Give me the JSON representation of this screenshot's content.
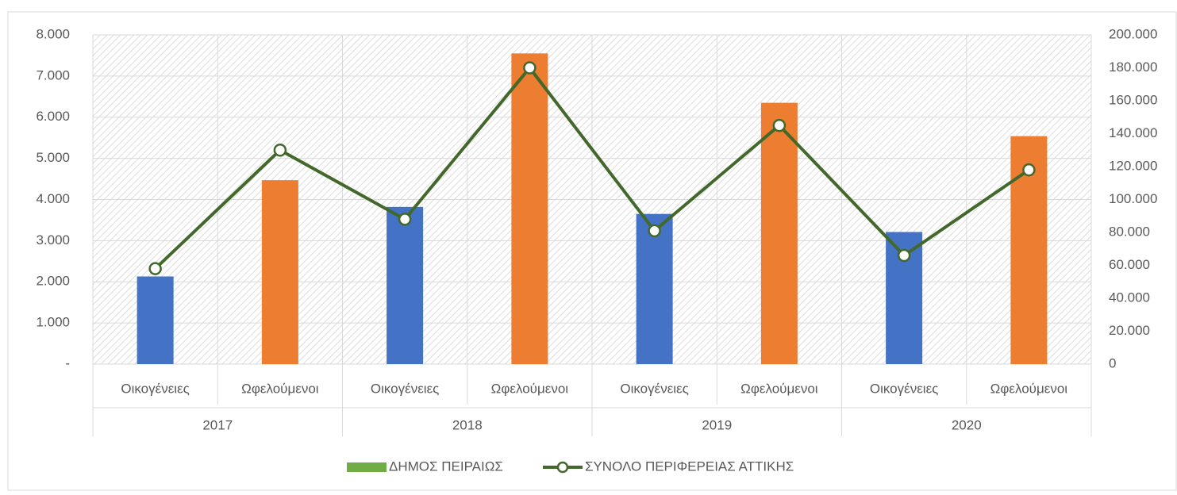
{
  "chart_data": {
    "type": "combo",
    "categories": [
      "Οικογένειες",
      "Ωφελούμενοι",
      "Οικογένειες",
      "Ωφελούμενοι",
      "Οικογένειες",
      "Ωφελούμενοι",
      "Οικογένειες",
      "Ωφελούμενοι"
    ],
    "groups": [
      "2017",
      "2018",
      "2019",
      "2020"
    ],
    "series": [
      {
        "name": "ΔΗΜΟΣ ΠΕΙΡΑΙΩΣ",
        "type": "bar",
        "color": "#70ad47",
        "point_colors": [
          "#4472c4",
          "#ed7d31",
          "#4472c4",
          "#ed7d31",
          "#4472c4",
          "#ed7d31",
          "#4472c4",
          "#ed7d31"
        ],
        "values": [
          2130,
          4470,
          3820,
          7550,
          3650,
          6350,
          3210,
          5540
        ]
      },
      {
        "name": "ΣΥΝΟΛΟ ΠΕΡΙΦΕΡΕΙΑΣ ΑΤΤΙΚΗΣ",
        "type": "line",
        "axis": "y2",
        "color": "#43682b",
        "values": [
          58000,
          130000,
          88000,
          180000,
          81000,
          145000,
          66000,
          118000
        ]
      }
    ],
    "ylim": [
      0,
      8000
    ],
    "yticks": [
      {
        "value": 0,
        "label": "-"
      },
      {
        "value": 1000,
        "label": "1.000"
      },
      {
        "value": 2000,
        "label": "2.000"
      },
      {
        "value": 3000,
        "label": "3.000"
      },
      {
        "value": 4000,
        "label": "4.000"
      },
      {
        "value": 5000,
        "label": "5.000"
      },
      {
        "value": 6000,
        "label": "6.000"
      },
      {
        "value": 7000,
        "label": "7.000"
      },
      {
        "value": 8000,
        "label": "8.000"
      }
    ],
    "y2lim": [
      0,
      200000
    ],
    "y2ticks": [
      0,
      {
        "value": 20000,
        "label": "20.000"
      },
      {
        "value": 40000,
        "label": "40.000"
      },
      {
        "value": 60000,
        "label": "60.000"
      },
      {
        "value": 80000,
        "label": "80.000"
      },
      {
        "value": 100000,
        "label": "100.000"
      },
      {
        "value": 120000,
        "label": "120.000"
      },
      {
        "value": 140000,
        "label": "140.000"
      },
      {
        "value": 160000,
        "label": "160.000"
      },
      {
        "value": 180000,
        "label": "180.000"
      },
      {
        "value": 200000,
        "label": "200.000"
      }
    ],
    "grid": true,
    "legend": "bottom"
  }
}
